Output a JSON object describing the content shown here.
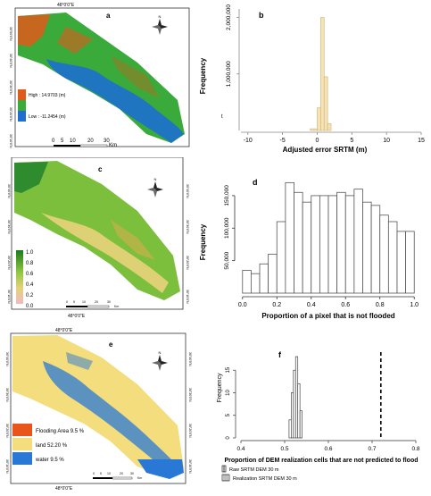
{
  "panels": {
    "a": {
      "letter": "a",
      "top_coord": "48°0'0\"E",
      "left_coords": [
        "30°10'0\"N",
        "30°20'0\"N",
        "30°30'0\"N",
        "30°40'0\"N",
        "30°50'0\"N"
      ],
      "legend": {
        "high": "High : 14.9703  (m)",
        "low": "Low : -11.2454  (m)"
      },
      "scale": {
        "ticks": [
          "0",
          "5",
          "10",
          "20",
          "30"
        ],
        "unit": "Km"
      },
      "colors": {
        "high": "#e05a1a",
        "mid": "#3aaa3a",
        "low": "#1e6fd0"
      },
      "north": "N"
    },
    "c": {
      "letter": "c",
      "top_coord": "48°0'0\"E",
      "bottom_coord": "48°0'0\"E",
      "left_coords": [
        "30°10'0\"N",
        "30°20'0\"N",
        "30°30'0\"N",
        "30°40'0\"N"
      ],
      "right_coords": [
        "30°10'0\"N",
        "30°20'0\"N",
        "30°30'0\"N",
        "30°40'0\"N"
      ],
      "legend_ticks": [
        "1.0",
        "0.8",
        "0.6",
        "0.4",
        "0.2",
        "0.0"
      ],
      "scale": {
        "ticks": [
          "0",
          "5",
          "10",
          "20",
          "30"
        ],
        "unit": "Km"
      },
      "north": "N"
    },
    "e": {
      "letter": "e",
      "top_coord": "48°0'0\"E",
      "bottom_coord": "48°0'0\"E",
      "left_coords": [
        "30°10'0\"N",
        "30°20'0\"N",
        "30°30'0\"N",
        "30°40'0\"N"
      ],
      "right_coords": [
        "30°10'0\"N",
        "30°20'0\"N",
        "30°30'0\"N",
        "30°40'0\"N"
      ],
      "legend": [
        {
          "label": "Flooding Area 9.5 %",
          "color": "#e8541a"
        },
        {
          "label": "land 52.20 %",
          "color": "#f3dd7c"
        },
        {
          "label": "water 9.5 %",
          "color": "#2a78d6"
        }
      ],
      "scale": {
        "ticks": [
          "0",
          "5",
          "10",
          "20",
          "30"
        ],
        "unit": "Km"
      },
      "north": "N"
    }
  },
  "chart_data": [
    {
      "panel": "b",
      "type": "bar",
      "xlabel": "Adjusted error SRTM (m)",
      "ylabel": "Frequency",
      "x_ticks": [
        -10,
        -5,
        0,
        5,
        10,
        15
      ],
      "y_ticks": [
        {
          "v": 1000000,
          "label": "1,000,000"
        },
        {
          "v": 2000000,
          "label": "2,000,000"
        }
      ],
      "xlim": [
        -11,
        15
      ],
      "ylim": [
        0,
        2150000
      ],
      "bins": [
        {
          "x0": -1,
          "x1": 0,
          "v": 30000
        },
        {
          "x0": 0,
          "x1": 0.5,
          "v": 400000
        },
        {
          "x0": 0.5,
          "x1": 1,
          "v": 2000000
        },
        {
          "x0": 1,
          "x1": 1.5,
          "v": 950000
        },
        {
          "x0": 1.5,
          "x1": 2,
          "v": 120000
        }
      ],
      "bar_fill": "#f7e3b4",
      "bar_stroke": "#c9b07a",
      "extra_tick_label": "t"
    },
    {
      "panel": "d",
      "type": "bar",
      "xlabel": "Proportion of a pixel that is not flooded",
      "ylabel": "Frequency",
      "x_ticks": [
        0.0,
        0.2,
        0.4,
        0.6,
        0.8,
        1.0
      ],
      "y_ticks": [
        {
          "v": 50000,
          "label": "50,000"
        },
        {
          "v": 100000,
          "label": "100,000"
        },
        {
          "v": 150000,
          "label": "150,000"
        }
      ],
      "xlim": [
        -0.03,
        1.03
      ],
      "ylim": [
        0,
        165000
      ],
      "bin_width": 0.05,
      "bin_start": 0.0,
      "values": [
        35000,
        30000,
        45000,
        60000,
        110000,
        170000,
        155000,
        140000,
        150000,
        150000,
        150000,
        155000,
        150000,
        160000,
        140000,
        135000,
        120000,
        110000,
        95000,
        95000
      ],
      "bar_fill": "#ffffff",
      "bar_stroke": "#555555"
    },
    {
      "panel": "f",
      "type": "bar",
      "xlabel": "Proportion of DEM realization cells that are not predicted to flood",
      "ylabel": "Frequency",
      "x_ticks": [
        0.4,
        0.5,
        0.6,
        0.7,
        0.8
      ],
      "y_ticks": [
        {
          "v": 0,
          "label": "0"
        },
        {
          "v": 5,
          "label": "5"
        },
        {
          "v": 10,
          "label": "10"
        },
        {
          "v": 15,
          "label": "15"
        }
      ],
      "xlim": [
        0.4,
        0.8
      ],
      "ylim": [
        0,
        19
      ],
      "bins": [
        {
          "x0": 0.51,
          "x1": 0.515,
          "v": 4
        },
        {
          "x0": 0.515,
          "x1": 0.52,
          "v": 10
        },
        {
          "x0": 0.52,
          "x1": 0.525,
          "v": 15
        },
        {
          "x0": 0.525,
          "x1": 0.53,
          "v": 18
        },
        {
          "x0": 0.53,
          "x1": 0.535,
          "v": 12
        },
        {
          "x0": 0.535,
          "x1": 0.54,
          "v": 6
        }
      ],
      "raw_line_x": 0.72,
      "legend": [
        "Raw SRTM DEM  30 m",
        "Realization SRTM DEM 30 m"
      ],
      "bar_fill": "#ffffff",
      "bar_stroke": "#444444"
    }
  ]
}
